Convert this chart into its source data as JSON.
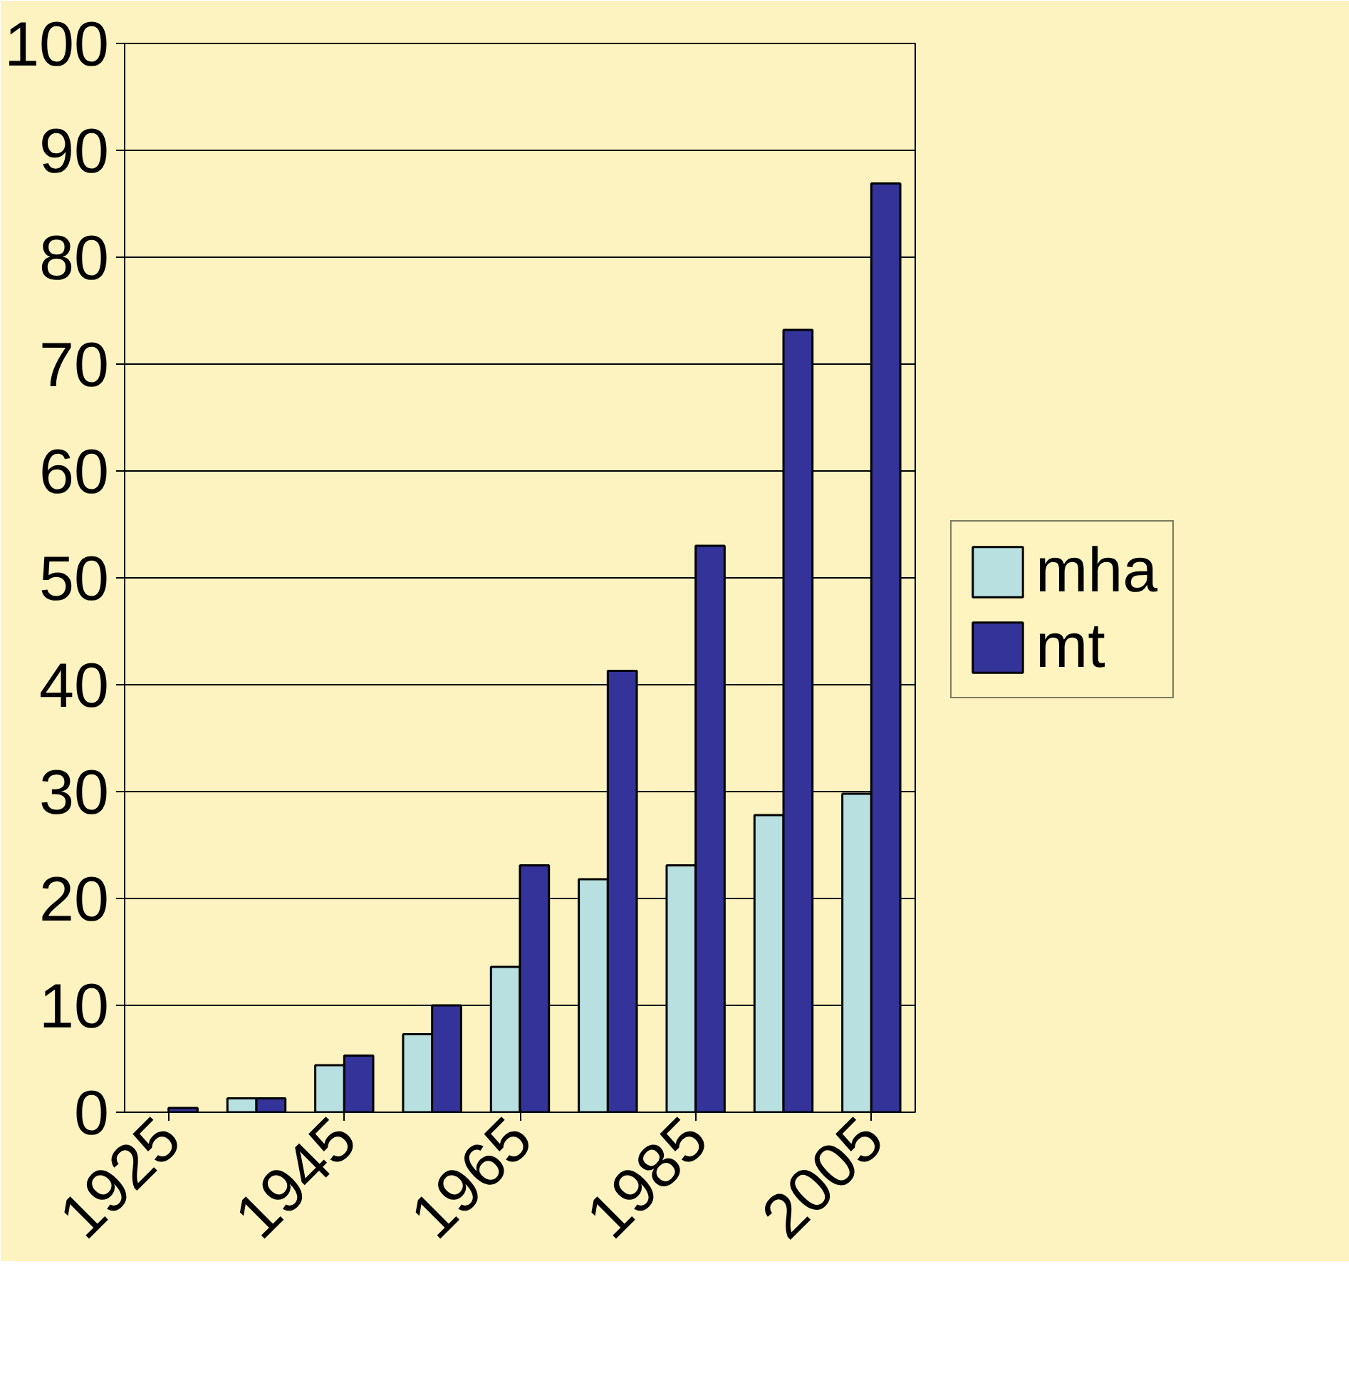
{
  "chart_data": {
    "type": "bar",
    "categories": [
      "1925",
      null,
      "1945",
      null,
      "1965",
      null,
      "1985",
      null,
      "2005"
    ],
    "series": [
      {
        "name": "mha",
        "color": "#b8e0e0",
        "values": [
          null,
          1.3,
          4.4,
          7.3,
          13.6,
          21.8,
          23.1,
          27.8,
          29.8
        ]
      },
      {
        "name": "mt",
        "color": "#333399",
        "values": [
          0.4,
          1.3,
          5.3,
          10.0,
          23.1,
          41.3,
          53.0,
          73.2,
          86.9
        ]
      }
    ],
    "ylim": [
      0,
      100
    ],
    "yticks": [
      0,
      10,
      20,
      30,
      40,
      50,
      60,
      70,
      80,
      90,
      100
    ],
    "grid": "y",
    "legend": "right"
  }
}
